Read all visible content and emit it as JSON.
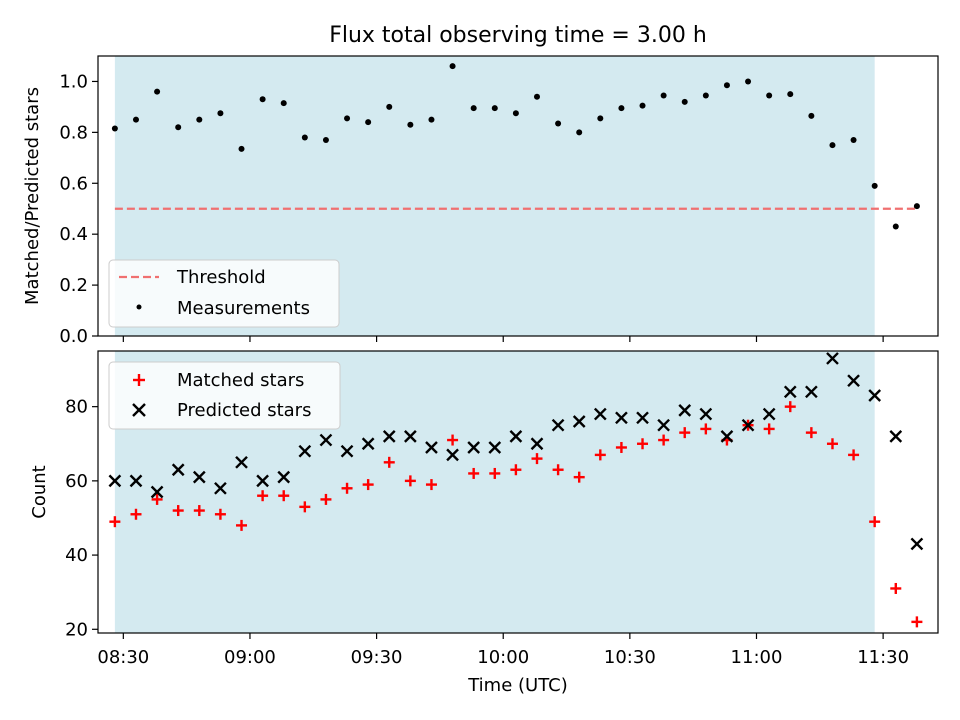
{
  "chart_data": [
    {
      "type": "scatter",
      "title": "Flux total observing time = 3.00 h",
      "xlabel": "",
      "ylabel": "Matched/Predicted stars",
      "ylim": [
        0.0,
        1.1
      ],
      "yticks": [
        "0.0",
        "0.2",
        "0.4",
        "0.6",
        "0.8",
        "1.0"
      ],
      "xlim": [
        "08:24",
        "11:43"
      ],
      "shaded_span": [
        "08:28",
        "11:28"
      ],
      "colors": {
        "span": "#d4eaf0",
        "threshold": "#f07070",
        "measurements": "#000000"
      },
      "legend": {
        "position": "lower-left",
        "entries": [
          "Threshold",
          "Measurements"
        ]
      },
      "threshold": 0.5,
      "series": [
        {
          "name": "Measurements",
          "x": [
            "08:28",
            "08:33",
            "08:38",
            "08:43",
            "08:48",
            "08:53",
            "08:58",
            "09:03",
            "09:08",
            "09:13",
            "09:18",
            "09:23",
            "09:28",
            "09:33",
            "09:38",
            "09:43",
            "09:48",
            "09:53",
            "09:58",
            "10:03",
            "10:08",
            "10:13",
            "10:18",
            "10:23",
            "10:28",
            "10:33",
            "10:38",
            "10:43",
            "10:48",
            "10:53",
            "10:58",
            "11:03",
            "11:08",
            "11:13",
            "11:18",
            "11:23",
            "11:28",
            "11:33",
            "11:38"
          ],
          "y": [
            0.815,
            0.85,
            0.96,
            0.82,
            0.85,
            0.875,
            0.735,
            0.93,
            0.915,
            0.78,
            0.77,
            0.855,
            0.84,
            0.9,
            0.83,
            0.85,
            1.06,
            0.895,
            0.895,
            0.875,
            0.94,
            0.835,
            0.8,
            0.855,
            0.895,
            0.905,
            0.945,
            0.92,
            0.945,
            0.985,
            1.0,
            0.945,
            0.95,
            0.865,
            0.75,
            0.77,
            0.59,
            0.43,
            0.51
          ]
        }
      ]
    },
    {
      "type": "scatter",
      "title": "",
      "xlabel": "Time (UTC)",
      "ylabel": "Count",
      "ylim": [
        19,
        95
      ],
      "yticks": [
        "20",
        "40",
        "60",
        "80"
      ],
      "xticks": [
        "08:30",
        "09:00",
        "09:30",
        "10:00",
        "10:30",
        "11:00",
        "11:30"
      ],
      "xlim": [
        "08:24",
        "11:43"
      ],
      "shaded_span": [
        "08:28",
        "11:28"
      ],
      "colors": {
        "span": "#d4eaf0",
        "matched": "#ff0000",
        "predicted": "#000000"
      },
      "legend": {
        "position": "upper-left",
        "entries": [
          "Matched stars",
          "Predicted stars"
        ]
      },
      "series": [
        {
          "name": "Matched stars",
          "x": [
            "08:28",
            "08:33",
            "08:38",
            "08:43",
            "08:48",
            "08:53",
            "08:58",
            "09:03",
            "09:08",
            "09:13",
            "09:18",
            "09:23",
            "09:28",
            "09:33",
            "09:38",
            "09:43",
            "09:48",
            "09:53",
            "09:58",
            "10:03",
            "10:08",
            "10:13",
            "10:18",
            "10:23",
            "10:28",
            "10:33",
            "10:38",
            "10:43",
            "10:48",
            "10:53",
            "10:58",
            "11:03",
            "11:08",
            "11:13",
            "11:18",
            "11:23",
            "11:28",
            "11:33",
            "11:38"
          ],
          "y": [
            49,
            51,
            55,
            52,
            52,
            51,
            48,
            56,
            56,
            53,
            55,
            58,
            59,
            65,
            60,
            59,
            71,
            62,
            62,
            63,
            66,
            63,
            61,
            67,
            69,
            70,
            71,
            73,
            74,
            71,
            75,
            74,
            80,
            73,
            70,
            67,
            49,
            31,
            22
          ]
        },
        {
          "name": "Predicted stars",
          "x": [
            "08:28",
            "08:33",
            "08:38",
            "08:43",
            "08:48",
            "08:53",
            "08:58",
            "09:03",
            "09:08",
            "09:13",
            "09:18",
            "09:23",
            "09:28",
            "09:33",
            "09:38",
            "09:43",
            "09:48",
            "09:53",
            "09:58",
            "10:03",
            "10:08",
            "10:13",
            "10:18",
            "10:23",
            "10:28",
            "10:33",
            "10:38",
            "10:43",
            "10:48",
            "10:53",
            "10:58",
            "11:03",
            "11:08",
            "11:13",
            "11:18",
            "11:23",
            "11:28",
            "11:33",
            "11:38"
          ],
          "y": [
            60,
            60,
            57,
            63,
            61,
            58,
            65,
            60,
            61,
            68,
            71,
            68,
            70,
            72,
            72,
            69,
            67,
            69,
            69,
            72,
            70,
            75,
            76,
            78,
            77,
            77,
            75,
            79,
            78,
            72,
            75,
            78,
            84,
            84,
            93,
            87,
            83,
            72,
            43
          ]
        }
      ]
    }
  ]
}
